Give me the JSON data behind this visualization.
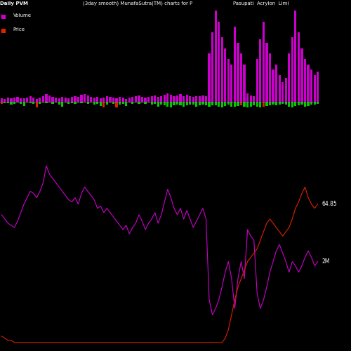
{
  "title_left": "Daily PVM",
  "title_center": "(3day smooth) MunafaSutra(TM) charts for P",
  "title_right": "Pasupati  Acrylon  Limi",
  "legend_volume_color": "#cc00cc",
  "legend_price_color": "#dd2200",
  "background_color": "#000000",
  "annotation_volume": "2M",
  "annotation_price": "64.85",
  "n_bars": 100,
  "vol_pos": [
    0.35,
    0.28,
    0.4,
    0.32,
    0.38,
    0.45,
    0.3,
    0.35,
    0.42,
    0.5,
    0.38,
    0.28,
    0.36,
    0.55,
    0.72,
    0.58,
    0.48,
    0.4,
    0.32,
    0.44,
    0.36,
    0.3,
    0.44,
    0.52,
    0.44,
    0.62,
    0.7,
    0.58,
    0.48,
    0.4,
    0.44,
    0.3,
    0.36,
    0.55,
    0.48,
    0.4,
    0.3,
    0.44,
    0.38,
    0.28,
    0.38,
    0.44,
    0.52,
    0.6,
    0.48,
    0.4,
    0.44,
    0.52,
    0.6,
    0.48,
    0.55,
    0.65,
    0.75,
    0.62,
    0.5,
    0.6,
    0.7,
    0.55,
    0.65,
    0.55,
    0.45,
    0.5,
    0.55,
    0.6,
    0.5,
    4.5,
    6.5,
    8.5,
    7.5,
    6.0,
    5.0,
    4.0,
    3.5,
    7.0,
    5.5,
    4.5,
    3.5,
    0.8,
    0.6,
    0.5,
    4.0,
    5.8,
    7.5,
    5.5,
    4.5,
    3.0,
    3.5,
    2.5,
    1.8,
    2.2,
    4.5,
    6.0,
    8.5,
    6.5,
    5.0,
    4.0,
    3.5,
    3.0,
    2.5,
    2.8
  ],
  "vol_neg": [
    0.18,
    0.12,
    0.14,
    0.28,
    0.18,
    0.1,
    0.18,
    0.38,
    0.08,
    0.14,
    0.22,
    0.55,
    0.18,
    0.08,
    0.14,
    0.08,
    0.18,
    0.08,
    0.28,
    0.48,
    0.08,
    0.22,
    0.12,
    0.18,
    0.08,
    0.12,
    0.08,
    0.18,
    0.08,
    0.28,
    0.18,
    0.38,
    0.52,
    0.28,
    0.08,
    0.18,
    0.52,
    0.28,
    0.18,
    0.38,
    0.08,
    0.18,
    0.08,
    0.18,
    0.08,
    0.18,
    0.08,
    0.28,
    0.18,
    0.48,
    0.25,
    0.35,
    0.45,
    0.5,
    0.3,
    0.25,
    0.3,
    0.45,
    0.35,
    0.25,
    0.28,
    0.45,
    0.3,
    0.25,
    0.3,
    0.45,
    0.35,
    0.3,
    0.45,
    0.5,
    0.4,
    0.25,
    0.48,
    0.45,
    0.4,
    0.3,
    0.48,
    0.5,
    0.45,
    0.3,
    0.45,
    0.55,
    0.45,
    0.4,
    0.3,
    0.25,
    0.35,
    0.25,
    0.2,
    0.25,
    0.45,
    0.5,
    0.4,
    0.35,
    0.25,
    0.48,
    0.38,
    0.28,
    0.25,
    0.18
  ],
  "price_neg_idx": [
    0,
    11,
    32,
    36,
    75,
    82
  ],
  "vol_line": [
    0.62,
    0.6,
    0.58,
    0.57,
    0.56,
    0.59,
    0.63,
    0.67,
    0.7,
    0.73,
    0.72,
    0.7,
    0.73,
    0.77,
    0.85,
    0.81,
    0.79,
    0.77,
    0.75,
    0.73,
    0.71,
    0.69,
    0.68,
    0.7,
    0.67,
    0.72,
    0.75,
    0.73,
    0.71,
    0.69,
    0.65,
    0.66,
    0.63,
    0.65,
    0.63,
    0.61,
    0.59,
    0.57,
    0.55,
    0.57,
    0.53,
    0.56,
    0.58,
    0.62,
    0.59,
    0.55,
    0.58,
    0.6,
    0.63,
    0.58,
    0.62,
    0.68,
    0.74,
    0.7,
    0.65,
    0.62,
    0.65,
    0.6,
    0.64,
    0.6,
    0.56,
    0.59,
    0.62,
    0.65,
    0.6,
    0.22,
    0.15,
    0.18,
    0.22,
    0.28,
    0.35,
    0.4,
    0.32,
    0.18,
    0.32,
    0.4,
    0.32,
    0.55,
    0.52,
    0.5,
    0.25,
    0.18,
    0.22,
    0.28,
    0.35,
    0.4,
    0.45,
    0.48,
    0.44,
    0.4,
    0.35,
    0.4,
    0.38,
    0.35,
    0.38,
    0.42,
    0.45,
    0.42,
    0.38,
    0.4
  ],
  "price_line": [
    0.05,
    0.04,
    0.03,
    0.03,
    0.02,
    0.02,
    0.02,
    0.02,
    0.02,
    0.02,
    0.02,
    0.02,
    0.02,
    0.02,
    0.02,
    0.02,
    0.02,
    0.02,
    0.02,
    0.02,
    0.02,
    0.02,
    0.02,
    0.02,
    0.02,
    0.02,
    0.02,
    0.02,
    0.02,
    0.02,
    0.02,
    0.02,
    0.02,
    0.02,
    0.02,
    0.02,
    0.02,
    0.02,
    0.02,
    0.02,
    0.02,
    0.02,
    0.02,
    0.02,
    0.02,
    0.02,
    0.02,
    0.02,
    0.02,
    0.02,
    0.02,
    0.02,
    0.02,
    0.02,
    0.02,
    0.02,
    0.02,
    0.02,
    0.02,
    0.02,
    0.02,
    0.02,
    0.02,
    0.02,
    0.02,
    0.02,
    0.02,
    0.02,
    0.02,
    0.02,
    0.04,
    0.08,
    0.15,
    0.22,
    0.28,
    0.32,
    0.36,
    0.4,
    0.42,
    0.44,
    0.46,
    0.5,
    0.54,
    0.58,
    0.6,
    0.58,
    0.56,
    0.54,
    0.52,
    0.54,
    0.56,
    0.6,
    0.65,
    0.68,
    0.72,
    0.75,
    0.7,
    0.67,
    0.65,
    0.67
  ]
}
